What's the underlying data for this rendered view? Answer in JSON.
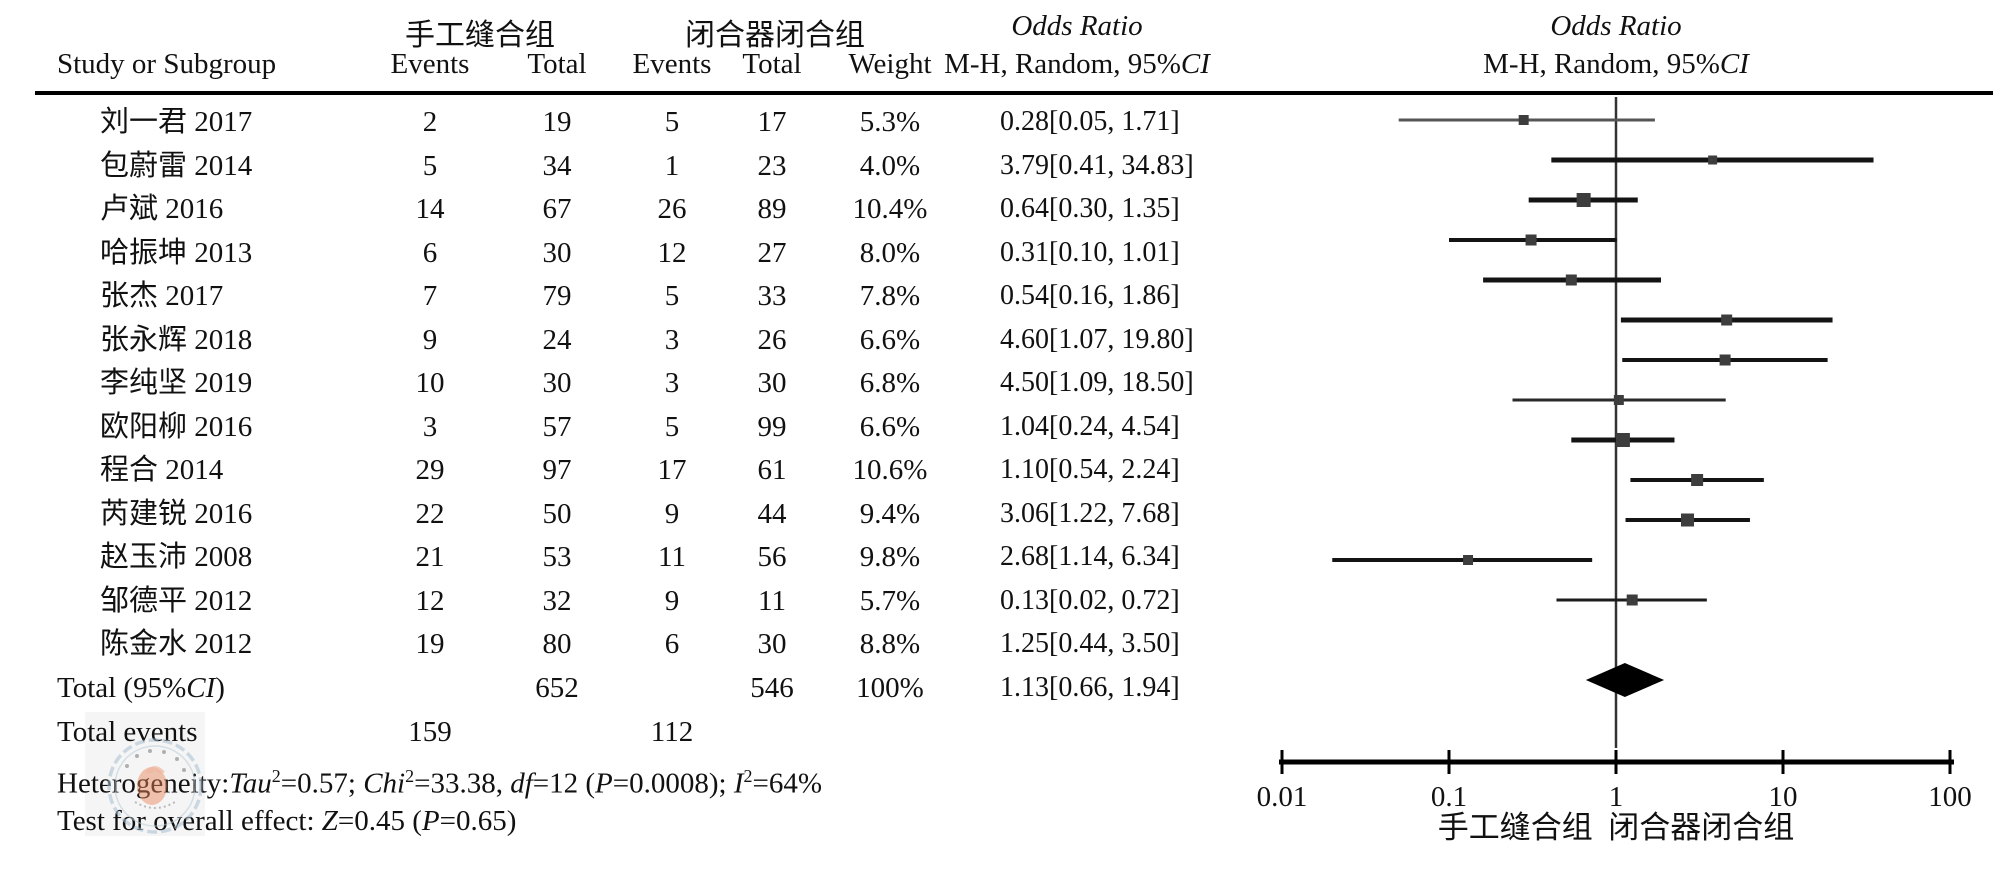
{
  "header": {
    "group1": "手工缝合组",
    "group2": "闭合器闭合组",
    "or_title": "Odds Ratio",
    "or_subtitle": [
      {
        "t": "M-H, Random, 95%"
      },
      {
        "t": "CI",
        "i": true
      }
    ],
    "col_study": "Study or Subgroup",
    "col_events": "Events",
    "col_total": "Total",
    "col_weight": "Weight"
  },
  "chart_data": {
    "type": "forest_plot",
    "effect_measure": "Odds Ratio (M-H, Random, 95% CI)",
    "x_axis": {
      "scale": "log10",
      "ticks": [
        0.01,
        0.1,
        1,
        10,
        100
      ],
      "tick_labels": [
        "0.01",
        "0.1",
        "1",
        "10",
        "100"
      ],
      "label_left": "手工缝合组",
      "label_right": "闭合器闭合组",
      "null_line": 1
    },
    "studies": [
      {
        "name": "刘一君 2017",
        "e1": "2",
        "t1": "19",
        "e2": "5",
        "t2": "17",
        "weight": "5.3%",
        "or_text": "0.28[0.05, 1.71]",
        "or": 0.28,
        "lo": 0.05,
        "hi": 1.71,
        "lw": 3,
        "ms": 10,
        "lc": "#555555"
      },
      {
        "name": "包蔚雷 2014",
        "e1": "5",
        "t1": "34",
        "e2": "1",
        "t2": "23",
        "weight": "4.0%",
        "or_text": "3.79[0.41, 34.83]",
        "or": 3.79,
        "lo": 0.41,
        "hi": 34.83,
        "lw": 5,
        "ms": 9,
        "lc": "#141414"
      },
      {
        "name": "卢斌 2016",
        "e1": "14",
        "t1": "67",
        "e2": "26",
        "t2": "89",
        "weight": "10.4%",
        "or_text": "0.64[0.30, 1.35]",
        "or": 0.64,
        "lo": 0.3,
        "hi": 1.35,
        "lw": 5,
        "ms": 14,
        "lc": "#141414"
      },
      {
        "name": "哈振坤 2013",
        "e1": "6",
        "t1": "30",
        "e2": "12",
        "t2": "27",
        "weight": "8.0%",
        "or_text": "0.31[0.10, 1.01]",
        "or": 0.31,
        "lo": 0.1,
        "hi": 1.01,
        "lw": 4,
        "ms": 11,
        "lc": "#141414"
      },
      {
        "name": "张杰 2017",
        "e1": "7",
        "t1": "79",
        "e2": "5",
        "t2": "33",
        "weight": "7.8%",
        "or_text": "0.54[0.16, 1.86]",
        "or": 0.54,
        "lo": 0.16,
        "hi": 1.86,
        "lw": 5,
        "ms": 11,
        "lc": "#141414"
      },
      {
        "name": "张永辉 2018",
        "e1": "9",
        "t1": "24",
        "e2": "3",
        "t2": "26",
        "weight": "6.6%",
        "or_text": "4.60[1.07, 19.80]",
        "or": 4.6,
        "lo": 1.07,
        "hi": 19.8,
        "lw": 5,
        "ms": 11,
        "lc": "#141414"
      },
      {
        "name": "李纯坚 2019",
        "e1": "10",
        "t1": "30",
        "e2": "3",
        "t2": "30",
        "weight": "6.8%",
        "or_text": "4.50[1.09, 18.50]",
        "or": 4.5,
        "lo": 1.09,
        "hi": 18.5,
        "lw": 4,
        "ms": 11,
        "lc": "#141414"
      },
      {
        "name": "欧阳柳 2016",
        "e1": "3",
        "t1": "57",
        "e2": "5",
        "t2": "99",
        "weight": "6.6%",
        "or_text": "1.04[0.24, 4.54]",
        "or": 1.04,
        "lo": 0.24,
        "hi": 4.54,
        "lw": 3,
        "ms": 10,
        "lc": "#2a2a2a"
      },
      {
        "name": "程合 2014",
        "e1": "29",
        "t1": "97",
        "e2": "17",
        "t2": "61",
        "weight": "10.6%",
        "or_text": "1.10[0.54, 2.24]",
        "or": 1.1,
        "lo": 0.54,
        "hi": 2.24,
        "lw": 5,
        "ms": 14,
        "lc": "#141414"
      },
      {
        "name": "芮建锐 2016",
        "e1": "22",
        "t1": "50",
        "e2": "9",
        "t2": "44",
        "weight": "9.4%",
        "or_text": "3.06[1.22, 7.68]",
        "or": 3.06,
        "lo": 1.22,
        "hi": 7.68,
        "lw": 4,
        "ms": 12,
        "lc": "#141414"
      },
      {
        "name": "赵玉沛 2008",
        "e1": "21",
        "t1": "53",
        "e2": "11",
        "t2": "56",
        "weight": "9.8%",
        "or_text": "2.68[1.14, 6.34]",
        "or": 2.68,
        "lo": 1.14,
        "hi": 6.34,
        "lw": 4,
        "ms": 13,
        "lc": "#141414"
      },
      {
        "name": "邹德平 2012",
        "e1": "12",
        "t1": "32",
        "e2": "9",
        "t2": "11",
        "weight": "5.7%",
        "or_text": "0.13[0.02, 0.72]",
        "or": 0.13,
        "lo": 0.02,
        "hi": 0.72,
        "lw": 4,
        "ms": 10,
        "lc": "#141414"
      },
      {
        "name": "陈金水 2012",
        "e1": "19",
        "t1": "80",
        "e2": "6",
        "t2": "30",
        "weight": "8.8%",
        "or_text": "1.25[0.44, 3.50]",
        "or": 1.25,
        "lo": 0.44,
        "hi": 3.5,
        "lw": 3,
        "ms": 11,
        "lc": "#1c1c1c"
      }
    ],
    "total": {
      "label": [
        {
          "t": "Total (95%"
        },
        {
          "t": "CI",
          "i": true
        },
        {
          "t": ")"
        }
      ],
      "t1": "652",
      "t2": "546",
      "weight": "100%",
      "or_text": "1.13[0.66, 1.94]",
      "or": 1.13,
      "lo": 0.66,
      "hi": 1.94
    },
    "total_events": {
      "label": "Total events",
      "e1": "159",
      "e2": "112"
    },
    "heterogeneity_text": "Heterogeneity: Tau2=0.57; Chi2=33.38, df=12 (P=0.0008); I2=64%",
    "overall_effect_text": "Test for overall effect: Z=0.45 (P=0.65)"
  },
  "footer": {
    "heterogeneity": [
      {
        "t": "Heterogeneity:"
      },
      {
        "t": "Tau",
        "i": true
      },
      {
        "t": "2",
        "sup": true
      },
      {
        "t": "=0.57; "
      },
      {
        "t": "Chi",
        "i": true
      },
      {
        "t": "2",
        "sup": true
      },
      {
        "t": "=33.38, "
      },
      {
        "t": "df",
        "i": true
      },
      {
        "t": "=12 ("
      },
      {
        "t": "P",
        "i": true
      },
      {
        "t": "=0.0008); "
      },
      {
        "t": "I",
        "i": true
      },
      {
        "t": "2",
        "sup": true
      },
      {
        "t": "=64%"
      }
    ],
    "overall": [
      {
        "t": "Test for overall effect: "
      },
      {
        "t": "Z",
        "i": true
      },
      {
        "t": "=0.45 ("
      },
      {
        "t": "P",
        "i": true
      },
      {
        "t": "=0.65)"
      }
    ]
  },
  "colors": {
    "text": "#111111",
    "marker": "#3d3d3d",
    "axis": "#000000",
    "null_line": "#333333",
    "diamond": "#000000",
    "seal_ring": "#a8c0d0",
    "seal_emblem": "#e8855a"
  }
}
